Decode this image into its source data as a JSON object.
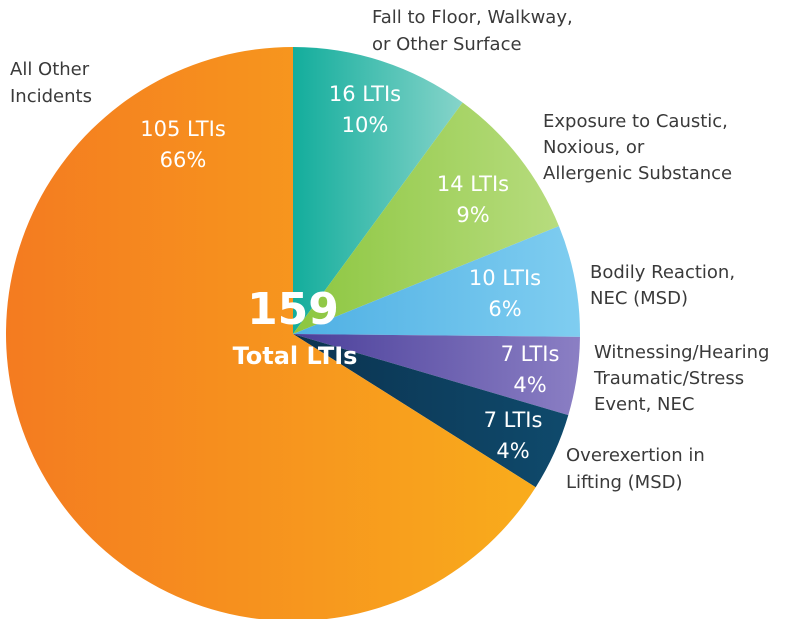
{
  "chart_data": {
    "type": "pie",
    "categories": [
      [
        "Fall to Floor, Walkway,",
        "or Other Surface"
      ],
      [
        "Exposure to Caustic,",
        "Noxious, or",
        "Allergenic Substance"
      ],
      [
        "Bodily Reaction,",
        "NEC (MSD)"
      ],
      [
        "Witnessing/Hearing",
        "Traumatic/Stress",
        "Event, NEC"
      ],
      [
        "Overexertion in",
        "Lifting (MSD)"
      ],
      [
        "All Other",
        "Incidents"
      ]
    ],
    "values": [
      16,
      14,
      10,
      7,
      7,
      105
    ],
    "value_labels": [
      "16 LTIs",
      "14 LTIs",
      "10 LTIs",
      "7 LTIs",
      "7 LTIs",
      "105 LTIs"
    ],
    "percentages": [
      10,
      9,
      6,
      4,
      4,
      66
    ],
    "percentage_labels": [
      "10%",
      "9%",
      "6%",
      "4%",
      "4%",
      "66%"
    ],
    "colors": [
      "#13ad9c",
      "#8cc63f",
      "#4fb0e4",
      "#4a3f9a",
      "#0b3350",
      "#f47b20"
    ],
    "gradient_colors": [
      "#86d4ca",
      "#b7dc7e",
      "#7fcdf0",
      "#8b7fc4",
      "#0f4a6c",
      "#f9ac1c"
    ],
    "total": 159,
    "total_label": "Total LTIs"
  }
}
